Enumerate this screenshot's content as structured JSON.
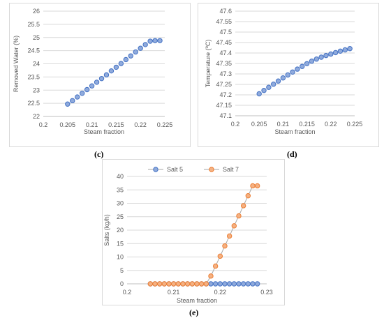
{
  "captions": {
    "c": "(c)",
    "d": "(d)",
    "e": "(e)"
  },
  "colors": {
    "blue_fill": "#4472c4",
    "blue_light": "#8faadc",
    "orange_fill": "#ed7d31",
    "orange_light": "#f4b183",
    "line": "#a5a5a5",
    "grid": "#d9d9d9",
    "text": "#595959"
  },
  "chart_data": [
    {
      "id": "c",
      "type": "scatter",
      "xlabel": "Steam fraction",
      "ylabel": "Removed Water (%)",
      "xlim": [
        0.2,
        0.225
      ],
      "ylim": [
        22,
        26
      ],
      "xticks": [
        "0.2",
        "0.205",
        "0.21",
        "0.215",
        "0.22",
        "0.225"
      ],
      "yticks": [
        "22",
        "22.5",
        "23",
        "23.5",
        "24",
        "24.5",
        "25",
        "25.5",
        "26"
      ],
      "grid": "horizontal",
      "series": [
        {
          "x": [
            0.205,
            0.206,
            0.207,
            0.208,
            0.209,
            0.21,
            0.211,
            0.212,
            0.213,
            0.214,
            0.215,
            0.216,
            0.217,
            0.218,
            0.219,
            0.22,
            0.221,
            0.222,
            0.223,
            0.224
          ],
          "y": [
            22.47,
            22.6,
            22.74,
            22.88,
            23.02,
            23.16,
            23.3,
            23.44,
            23.58,
            23.73,
            23.87,
            24.01,
            24.16,
            24.3,
            24.45,
            24.59,
            24.73,
            24.86,
            24.88,
            24.88
          ]
        }
      ]
    },
    {
      "id": "d",
      "type": "scatter",
      "xlabel": "Steam fraction",
      "ylabel": "Temperature (ºC)",
      "xlim": [
        0.2,
        0.225
      ],
      "ylim": [
        47.1,
        47.6
      ],
      "xticks": [
        "0.2",
        "0.205",
        "0.21",
        "0.215",
        "0.22",
        "0.225"
      ],
      "yticks": [
        "47.1",
        "47.15",
        "47.2",
        "47.25",
        "47.3",
        "47.35",
        "47.4",
        "47.45",
        "47.5",
        "47.55",
        "47.6"
      ],
      "grid": "horizontal",
      "series": [
        {
          "x": [
            0.205,
            0.206,
            0.207,
            0.208,
            0.209,
            0.21,
            0.211,
            0.212,
            0.213,
            0.214,
            0.215,
            0.216,
            0.217,
            0.218,
            0.219,
            0.22,
            0.221,
            0.222,
            0.223,
            0.224
          ],
          "y": [
            47.205,
            47.221,
            47.236,
            47.251,
            47.266,
            47.281,
            47.295,
            47.309,
            47.323,
            47.336,
            47.349,
            47.361,
            47.371,
            47.38,
            47.388,
            47.395,
            47.402,
            47.409,
            47.415,
            47.421
          ]
        }
      ]
    },
    {
      "id": "e",
      "type": "line",
      "xlabel": "Steam fraction",
      "ylabel": "Salts (kg/h)",
      "xlim": [
        0.2,
        0.23
      ],
      "ylim": [
        0,
        40
      ],
      "xticks": [
        "0.2",
        "0.21",
        "0.22",
        "0.23"
      ],
      "yticks": [
        "0",
        "5",
        "10",
        "15",
        "20",
        "25",
        "30",
        "35",
        "40"
      ],
      "grid": "horizontal",
      "legend": "top-center",
      "series": [
        {
          "name": "Salt 5",
          "x": [
            0.205,
            0.206,
            0.207,
            0.208,
            0.209,
            0.21,
            0.211,
            0.212,
            0.213,
            0.214,
            0.215,
            0.216,
            0.217,
            0.218,
            0.219,
            0.22,
            0.221,
            0.222,
            0.223,
            0.224,
            0.225,
            0.226,
            0.227,
            0.228
          ],
          "y": [
            0,
            0,
            0,
            0,
            0,
            0,
            0,
            0,
            0,
            0,
            0,
            0,
            0,
            0,
            0,
            0,
            0,
            0,
            0,
            0,
            0,
            0,
            0,
            0
          ]
        },
        {
          "name": "Salt 7",
          "x": [
            0.205,
            0.206,
            0.207,
            0.208,
            0.209,
            0.21,
            0.211,
            0.212,
            0.213,
            0.214,
            0.215,
            0.216,
            0.217,
            0.218,
            0.219,
            0.22,
            0.221,
            0.222,
            0.223,
            0.224,
            0.225,
            0.226,
            0.227,
            0.228
          ],
          "y": [
            0,
            0,
            0,
            0,
            0,
            0,
            0,
            0,
            0,
            0,
            0,
            0,
            0,
            2.9,
            6.6,
            10.3,
            14.1,
            17.8,
            21.6,
            25.3,
            29.1,
            32.8,
            36.5,
            36.5
          ]
        }
      ]
    }
  ]
}
